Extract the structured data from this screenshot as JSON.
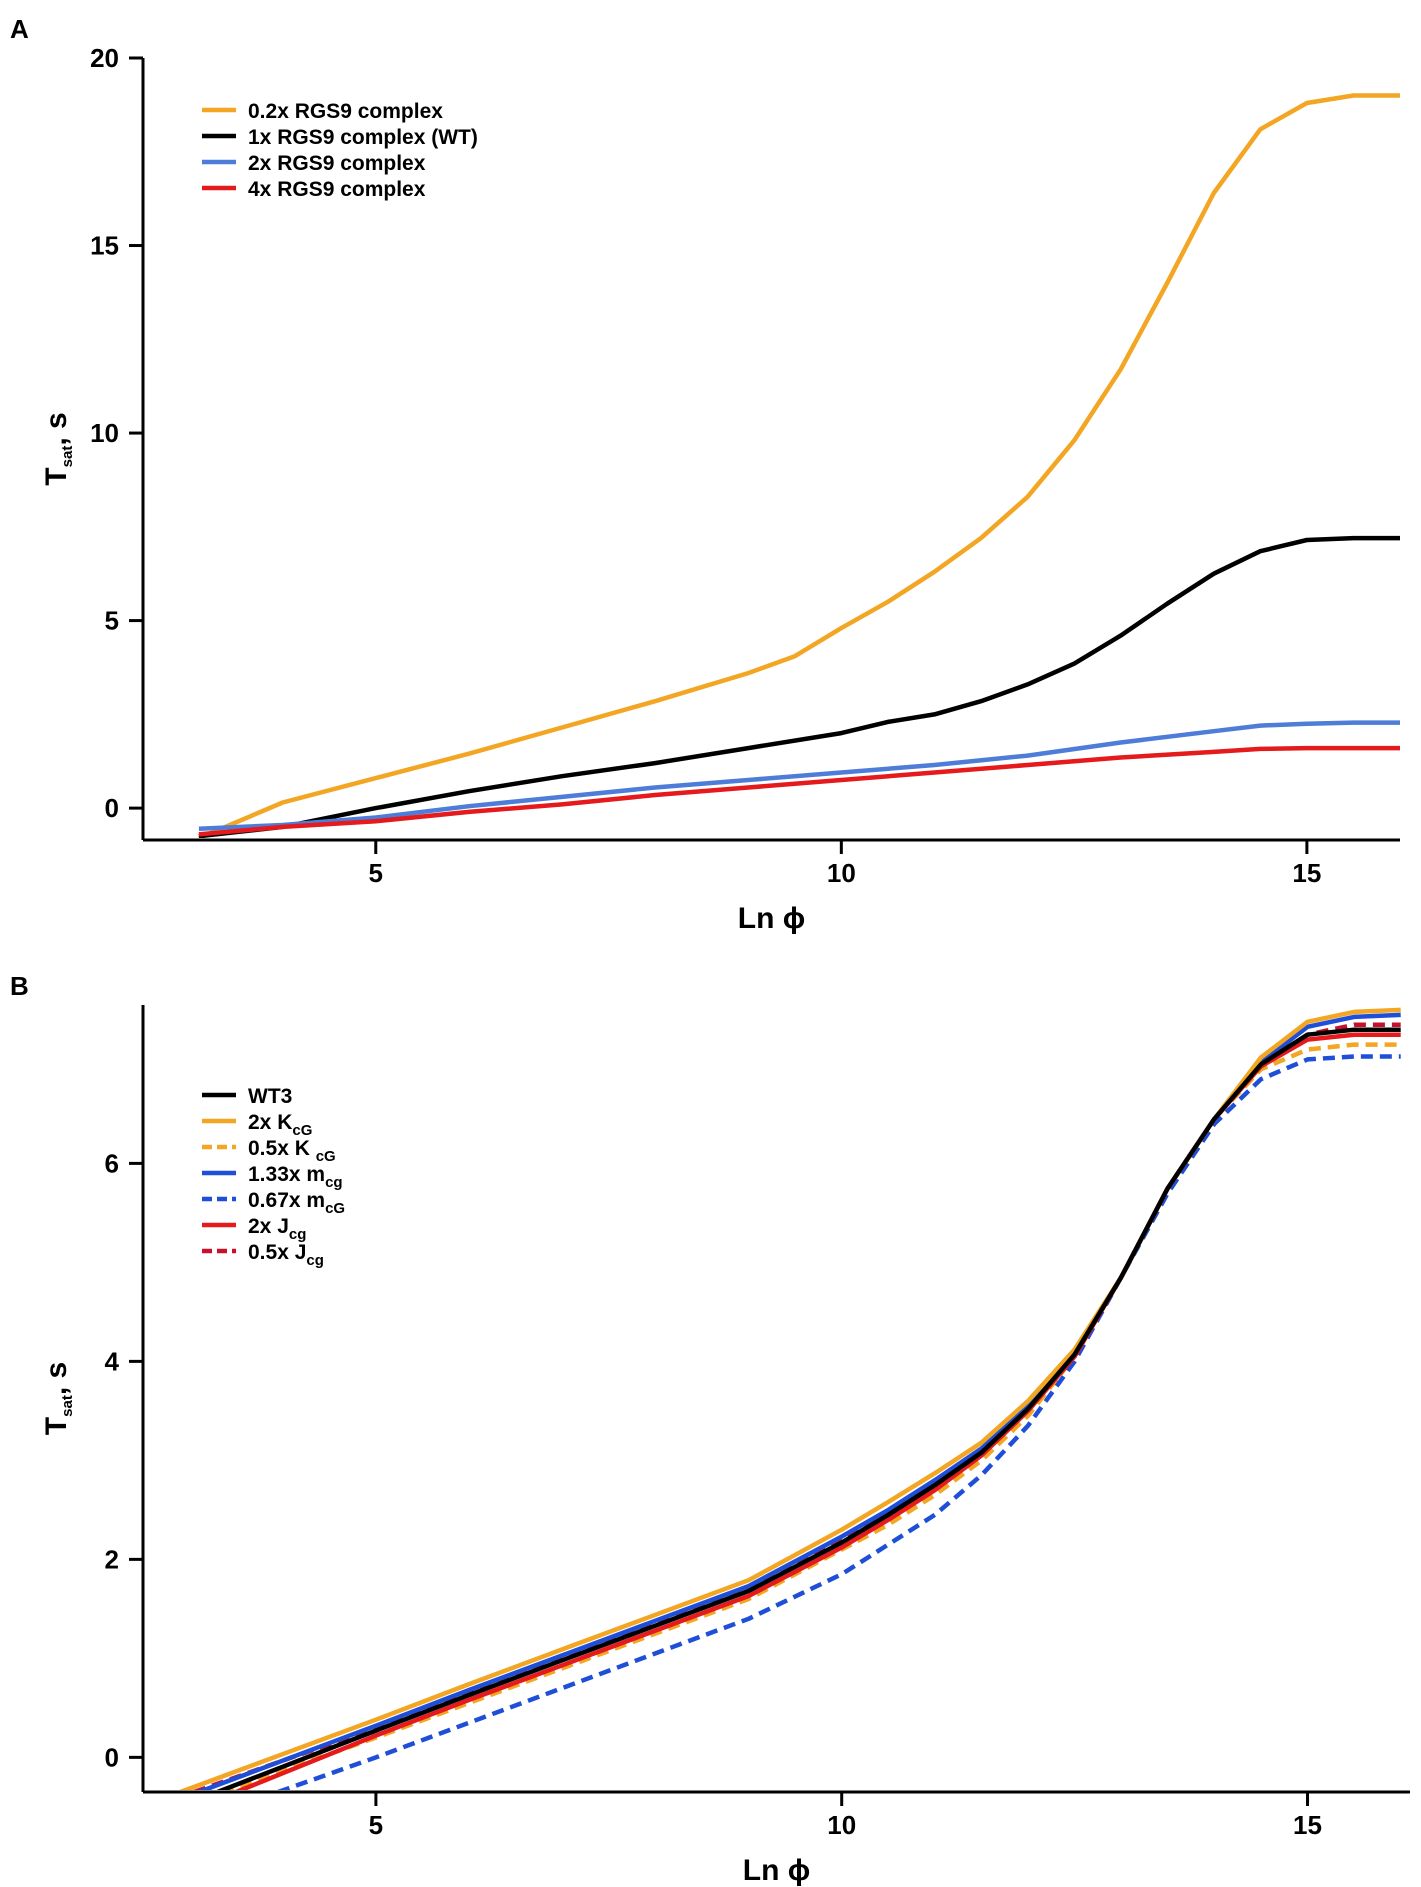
{
  "chart_data": [
    {
      "panel_label": "A",
      "type": "line",
      "xlabel": "Ln ϕ",
      "ylabel": "T",
      "ylabel_sub": "sat",
      "ylabel_suffix": ", s",
      "xlim": [
        2.5,
        16
      ],
      "ylim": [
        -0.85,
        20
      ],
      "xticks": [
        5,
        10,
        15
      ],
      "yticks": [
        0,
        5,
        10,
        15,
        20
      ],
      "series": [
        {
          "name": "0.2x RGS9 complex",
          "color": "#F2A623",
          "dashed": false,
          "x": [
            3.1,
            4,
            5,
            6,
            7,
            8,
            9,
            9.5,
            10,
            10.5,
            11,
            11.5,
            12,
            12.5,
            13,
            13.5,
            14,
            14.5,
            15,
            15.5,
            16
          ],
          "y": [
            -0.8,
            0.15,
            0.8,
            1.45,
            2.15,
            2.85,
            3.6,
            4.05,
            4.8,
            5.5,
            6.3,
            7.2,
            8.3,
            9.8,
            11.7,
            14.0,
            16.4,
            18.1,
            18.8,
            19.0,
            19.0
          ]
        },
        {
          "name": "1x RGS9 complex (WT)",
          "color": "#000000",
          "dashed": false,
          "x": [
            3.1,
            4,
            5,
            6,
            7,
            8,
            9,
            10,
            10.5,
            11,
            11.5,
            12,
            12.5,
            13,
            13.5,
            14,
            14.5,
            15,
            15.5,
            16
          ],
          "y": [
            -0.75,
            -0.5,
            0.0,
            0.45,
            0.85,
            1.2,
            1.6,
            2.0,
            2.3,
            2.5,
            2.85,
            3.3,
            3.85,
            4.6,
            5.45,
            6.25,
            6.85,
            7.15,
            7.2,
            7.2
          ]
        },
        {
          "name": "2x RGS9 complex",
          "color": "#4D7DD8",
          "dashed": false,
          "x": [
            3.1,
            4,
            5,
            6,
            7,
            8,
            9,
            10,
            11,
            12,
            13,
            14,
            14.5,
            15,
            15.5,
            16
          ],
          "y": [
            -0.55,
            -0.45,
            -0.25,
            0.05,
            0.3,
            0.55,
            0.75,
            0.95,
            1.15,
            1.4,
            1.75,
            2.05,
            2.2,
            2.25,
            2.28,
            2.28
          ]
        },
        {
          "name": "4x RGS9 complex",
          "color": "#E41A1C",
          "dashed": false,
          "x": [
            3.1,
            4,
            5,
            6,
            7,
            8,
            9,
            10,
            11,
            12,
            13,
            14,
            14.5,
            15,
            15.5,
            16
          ],
          "y": [
            -0.7,
            -0.5,
            -0.35,
            -0.1,
            0.1,
            0.35,
            0.55,
            0.75,
            0.95,
            1.15,
            1.35,
            1.5,
            1.58,
            1.6,
            1.6,
            1.6
          ]
        }
      ]
    },
    {
      "panel_label": "B",
      "type": "line",
      "xlabel": "Ln ϕ",
      "ylabel": "T",
      "ylabel_sub": "sat",
      "ylabel_suffix": ", s",
      "xlim": [
        2.5,
        16.1
      ],
      "ylim": [
        -0.35,
        7.6
      ],
      "xticks": [
        5,
        10,
        15
      ],
      "yticks": [
        0,
        2,
        4,
        6
      ],
      "series": [
        {
          "name": "0.5x K",
          "name_sub": "cG",
          "name_sep": "  ",
          "color": "#F2A623",
          "dashed": true,
          "x": [
            3.35,
            5,
            6,
            7,
            8,
            9,
            10,
            10.5,
            11,
            11.5,
            12,
            12.5,
            13,
            13.5,
            14,
            14.5,
            15,
            15.5,
            16
          ],
          "y": [
            -0.35,
            0.2,
            0.55,
            0.9,
            1.25,
            1.6,
            2.1,
            2.35,
            2.65,
            3.0,
            3.45,
            4.05,
            4.85,
            5.75,
            6.45,
            6.95,
            7.15,
            7.2,
            7.2
          ]
        },
        {
          "name": "0.67x m",
          "name_sub": "cG",
          "name_sep": "",
          "color": "#1F4FD8",
          "dashed": true,
          "x": [
            3.95,
            5,
            6,
            7,
            8,
            9,
            10,
            10.5,
            11,
            11.5,
            12,
            12.5,
            13,
            13.5,
            14,
            14.5,
            15,
            15.5,
            16
          ],
          "y": [
            -0.35,
            0.0,
            0.35,
            0.7,
            1.05,
            1.4,
            1.85,
            2.15,
            2.45,
            2.85,
            3.35,
            4.0,
            4.85,
            5.7,
            6.4,
            6.85,
            7.05,
            7.08,
            7.08
          ]
        },
        {
          "name": "0.5x J",
          "name_sub": "cg",
          "name_sep": "",
          "color": "#C8102E",
          "dashed": true,
          "x": [
            3.05,
            5,
            6,
            7,
            8,
            9,
            10,
            10.5,
            11,
            11.5,
            12,
            12.5,
            13,
            13.5,
            14,
            14.5,
            15,
            15.5,
            16
          ],
          "y": [
            -0.35,
            0.3,
            0.65,
            1.0,
            1.35,
            1.7,
            2.2,
            2.45,
            2.75,
            3.1,
            3.55,
            4.1,
            4.85,
            5.75,
            6.45,
            7.0,
            7.3,
            7.4,
            7.4
          ]
        },
        {
          "name": "2x J",
          "name_sub": "cg",
          "name_sep": "",
          "color": "#E41A1C",
          "dashed": false,
          "x": [
            3.5,
            5,
            6,
            7,
            8,
            9,
            10,
            10.5,
            11,
            11.5,
            12,
            12.5,
            13,
            13.5,
            14,
            14.5,
            15,
            15.5,
            16
          ],
          "y": [
            -0.35,
            0.22,
            0.58,
            0.93,
            1.28,
            1.63,
            2.12,
            2.4,
            2.7,
            3.05,
            3.5,
            4.05,
            4.85,
            5.75,
            6.45,
            6.98,
            7.25,
            7.3,
            7.3
          ]
        },
        {
          "name": "1.33x m",
          "name_sub": "cg",
          "name_sep": "",
          "color": "#1F4FD8",
          "dashed": false,
          "x": [
            3.1,
            5,
            6,
            7,
            8,
            9,
            10,
            10.5,
            11,
            11.5,
            12,
            12.5,
            13,
            13.5,
            14,
            14.5,
            15,
            15.5,
            16
          ],
          "y": [
            -0.35,
            0.32,
            0.68,
            1.03,
            1.38,
            1.73,
            2.23,
            2.5,
            2.8,
            3.12,
            3.55,
            4.1,
            4.85,
            5.75,
            6.45,
            7.02,
            7.38,
            7.48,
            7.5
          ]
        },
        {
          "name": "2x K",
          "name_sub": "cG",
          "name_sep": "",
          "color": "#F2A623",
          "dashed": false,
          "x": [
            2.9,
            5,
            6,
            7,
            8,
            9,
            10,
            10.5,
            11,
            11.5,
            12,
            12.5,
            13,
            13.5,
            14,
            14.5,
            15,
            15.5,
            16
          ],
          "y": [
            -0.35,
            0.38,
            0.74,
            1.09,
            1.44,
            1.79,
            2.3,
            2.58,
            2.87,
            3.18,
            3.6,
            4.12,
            4.85,
            5.75,
            6.45,
            7.07,
            7.43,
            7.53,
            7.55
          ]
        },
        {
          "name": "WT3",
          "name_sub": "",
          "name_sep": "",
          "color": "#000000",
          "dashed": false,
          "x": [
            3.3,
            5,
            6,
            7,
            8,
            9,
            10,
            10.5,
            11,
            11.5,
            12,
            12.5,
            13,
            13.5,
            14,
            14.5,
            15,
            15.5,
            16
          ],
          "y": [
            -0.35,
            0.27,
            0.63,
            0.98,
            1.33,
            1.68,
            2.17,
            2.45,
            2.75,
            3.08,
            3.52,
            4.07,
            4.85,
            5.75,
            6.45,
            7.0,
            7.3,
            7.35,
            7.35
          ]
        }
      ],
      "legend_order": [
        "WT3",
        "2x K",
        "0.5x K",
        "1.33x m",
        "0.67x m",
        "2x J",
        "0.5x J"
      ]
    }
  ]
}
